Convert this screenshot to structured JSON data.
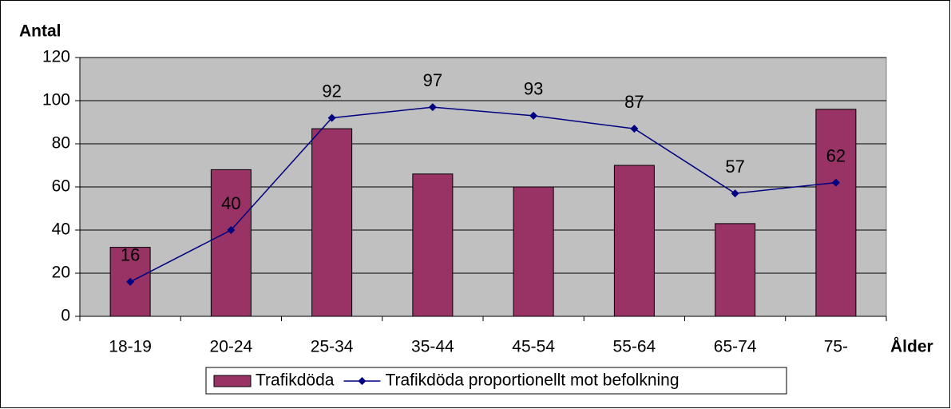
{
  "chart_data": {
    "type": "bar",
    "y_axis_label": "Antal",
    "x_axis_label": "Ålder",
    "categories": [
      "18-19",
      "20-24",
      "25-34",
      "35-44",
      "45-54",
      "55-64",
      "65-74",
      "75-"
    ],
    "series": [
      {
        "name": "Trafikdöda",
        "type": "bar",
        "color": "#993366",
        "values": [
          32,
          68,
          87,
          66,
          60,
          70,
          43,
          96
        ]
      },
      {
        "name": "Trafikdöda proportionellt mot befolkning",
        "type": "line",
        "color": "#000080",
        "data_labels": true,
        "values": [
          16,
          40,
          92,
          97,
          93,
          87,
          57,
          62
        ]
      }
    ],
    "ylim": [
      0,
      120
    ],
    "yticks": [
      0,
      20,
      40,
      60,
      80,
      100,
      120
    ],
    "grid": true,
    "legend": "bottom"
  }
}
